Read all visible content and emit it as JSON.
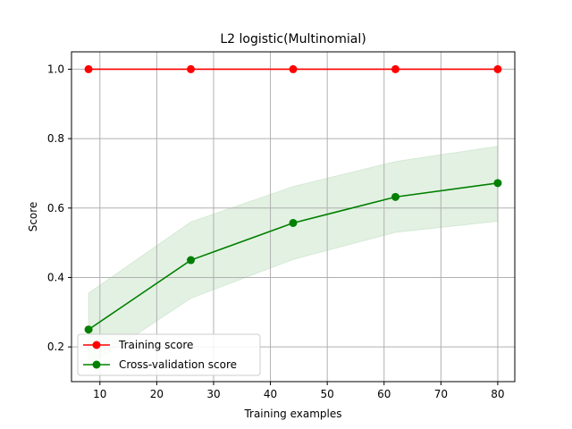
{
  "chart_data": {
    "type": "line",
    "title": "L2 logistic(Multinomial)",
    "xlabel": "Training examples",
    "ylabel": "Score",
    "xlim": [
      5,
      83
    ],
    "ylim": [
      0.1,
      1.05
    ],
    "xticks": [
      10,
      20,
      30,
      40,
      50,
      60,
      70,
      80
    ],
    "yticks": [
      0.2,
      0.4,
      0.6,
      0.8,
      1.0
    ],
    "xtick_labels": [
      "10",
      "20",
      "30",
      "40",
      "50",
      "60",
      "70",
      "80"
    ],
    "ytick_labels": [
      "0.2",
      "0.4",
      "0.6",
      "0.8",
      "1.0"
    ],
    "grid": true,
    "legend_position": "lower-left",
    "x": [
      8,
      26,
      44,
      62,
      80
    ],
    "series": [
      {
        "name": "Training score",
        "color": "#ff0000",
        "values": [
          1.0,
          1.0,
          1.0,
          1.0,
          1.0
        ],
        "band_lower": [
          1.0,
          1.0,
          1.0,
          1.0,
          1.0
        ],
        "band_upper": [
          1.0,
          1.0,
          1.0,
          1.0,
          1.0
        ]
      },
      {
        "name": "Cross-validation score",
        "color": "#008000",
        "values": [
          0.25,
          0.45,
          0.557,
          0.632,
          0.672
        ],
        "band_lower": [
          0.145,
          0.34,
          0.452,
          0.53,
          0.562
        ],
        "band_upper": [
          0.355,
          0.56,
          0.662,
          0.734,
          0.778
        ]
      }
    ]
  }
}
